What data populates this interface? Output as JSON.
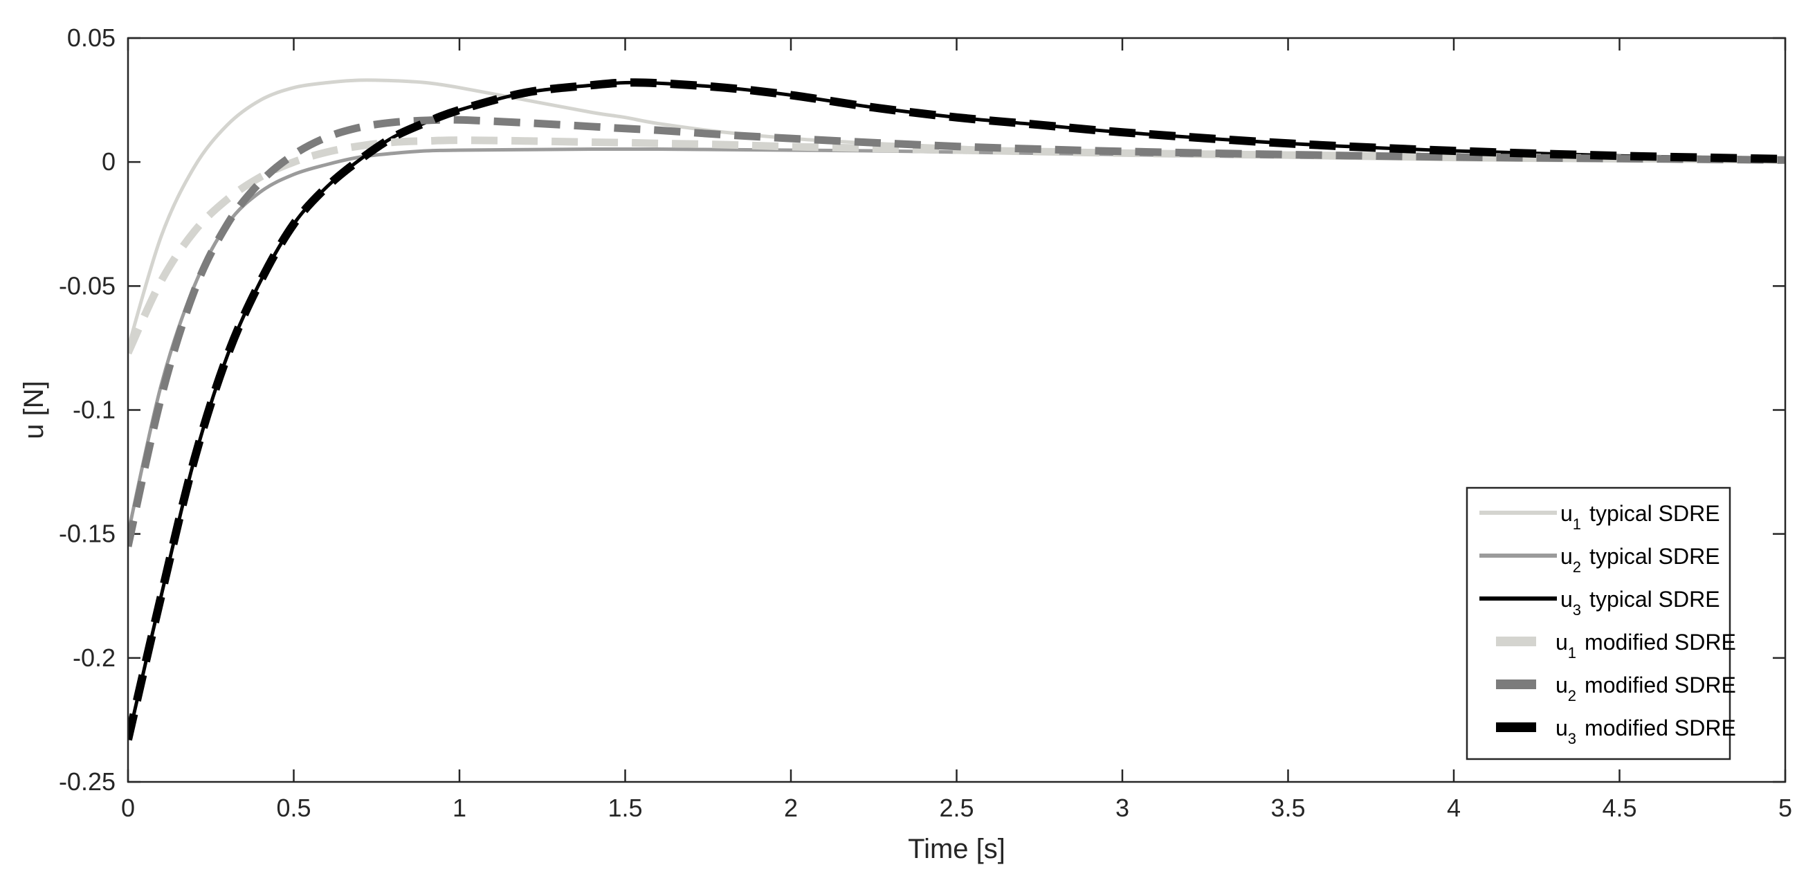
{
  "chart_data": {
    "type": "line",
    "xlabel": "Time [s]",
    "ylabel": "u [N]",
    "xlim": [
      0,
      5
    ],
    "ylim": [
      -0.25,
      0.05
    ],
    "x_ticks": [
      0,
      0.5,
      1,
      1.5,
      2,
      2.5,
      3,
      3.5,
      4,
      4.5,
      5
    ],
    "x_tick_labels": [
      "0",
      "0.5",
      "1",
      "1.5",
      "2",
      "2.5",
      "3",
      "3.5",
      "4",
      "4.5",
      "5"
    ],
    "y_ticks": [
      0.05,
      0,
      -0.05,
      -0.1,
      -0.15,
      -0.2,
      -0.25
    ],
    "y_tick_labels": [
      "0.05",
      "0",
      "-0.05",
      "-0.1",
      "-0.15",
      "-0.2",
      "-0.25"
    ],
    "grid": false,
    "legend_position": "bottom-right",
    "x": [
      0,
      0.1,
      0.2,
      0.3,
      0.4,
      0.5,
      0.6,
      0.7,
      0.8,
      0.9,
      1.0,
      1.2,
      1.4,
      1.5,
      1.6,
      1.8,
      2.0,
      2.25,
      2.5,
      2.75,
      3.0,
      3.5,
      4.0,
      4.5,
      5.0
    ],
    "series": [
      {
        "name": "typical SDRE",
        "subscript": "1",
        "symbol": "u",
        "style": "solid",
        "color": "#d4d4cf",
        "width": 5,
        "values": [
          -0.075,
          -0.03,
          -0.002,
          0.015,
          0.025,
          0.03,
          0.032,
          0.033,
          0.0328,
          0.032,
          0.03,
          0.025,
          0.02,
          0.018,
          0.0155,
          0.012,
          0.0095,
          0.0075,
          0.006,
          0.0045,
          0.0035,
          0.002,
          0.001,
          0.0005,
          0.0003
        ]
      },
      {
        "name": "typical SDRE",
        "subscript": "2",
        "symbol": "u",
        "style": "solid",
        "color": "#9b9b9b",
        "width": 5,
        "values": [
          -0.15,
          -0.09,
          -0.05,
          -0.025,
          -0.012,
          -0.005,
          -0.001,
          0.002,
          0.0035,
          0.0045,
          0.0048,
          0.005,
          0.0052,
          0.0052,
          0.0052,
          0.005,
          0.0048,
          0.0045,
          0.004,
          0.0035,
          0.003,
          0.002,
          0.0015,
          0.001,
          0.0005
        ]
      },
      {
        "name": "typical SDRE",
        "subscript": "3",
        "symbol": "u",
        "style": "solid",
        "color": "#000000",
        "width": 5,
        "values": [
          -0.233,
          -0.175,
          -0.12,
          -0.078,
          -0.048,
          -0.025,
          -0.01,
          0.001,
          0.01,
          0.016,
          0.021,
          0.028,
          0.031,
          0.032,
          0.0318,
          0.03,
          0.027,
          0.022,
          0.018,
          0.015,
          0.012,
          0.0075,
          0.0045,
          0.0025,
          0.0012
        ]
      },
      {
        "name": "modified SDRE",
        "subscript": "1",
        "symbol": "u",
        "style": "dashed",
        "color": "#d4d4cf",
        "width": 11,
        "values": [
          -0.077,
          -0.048,
          -0.028,
          -0.015,
          -0.006,
          0.0,
          0.004,
          0.0065,
          0.008,
          0.0085,
          0.0088,
          0.0085,
          0.008,
          0.0078,
          0.0075,
          0.007,
          0.0062,
          0.0055,
          0.0048,
          0.0042,
          0.0036,
          0.0028,
          0.0022,
          0.0015,
          0.0008
        ]
      },
      {
        "name": "modified SDRE",
        "subscript": "2",
        "symbol": "u",
        "style": "dashed",
        "color": "#7c7c7c",
        "width": 11,
        "values": [
          -0.155,
          -0.095,
          -0.052,
          -0.025,
          -0.008,
          0.003,
          0.01,
          0.014,
          0.016,
          0.0168,
          0.017,
          0.0158,
          0.0143,
          0.0135,
          0.0128,
          0.011,
          0.0095,
          0.0078,
          0.0063,
          0.0052,
          0.0043,
          0.003,
          0.002,
          0.0014,
          0.0008
        ]
      },
      {
        "name": "modified SDRE",
        "subscript": "3",
        "symbol": "u",
        "style": "dashed",
        "color": "#000000",
        "width": 12,
        "values": [
          -0.233,
          -0.175,
          -0.12,
          -0.078,
          -0.048,
          -0.025,
          -0.01,
          0.001,
          0.01,
          0.016,
          0.021,
          0.028,
          0.031,
          0.032,
          0.0318,
          0.03,
          0.027,
          0.022,
          0.018,
          0.015,
          0.012,
          0.0075,
          0.0045,
          0.0025,
          0.0012
        ]
      }
    ]
  }
}
